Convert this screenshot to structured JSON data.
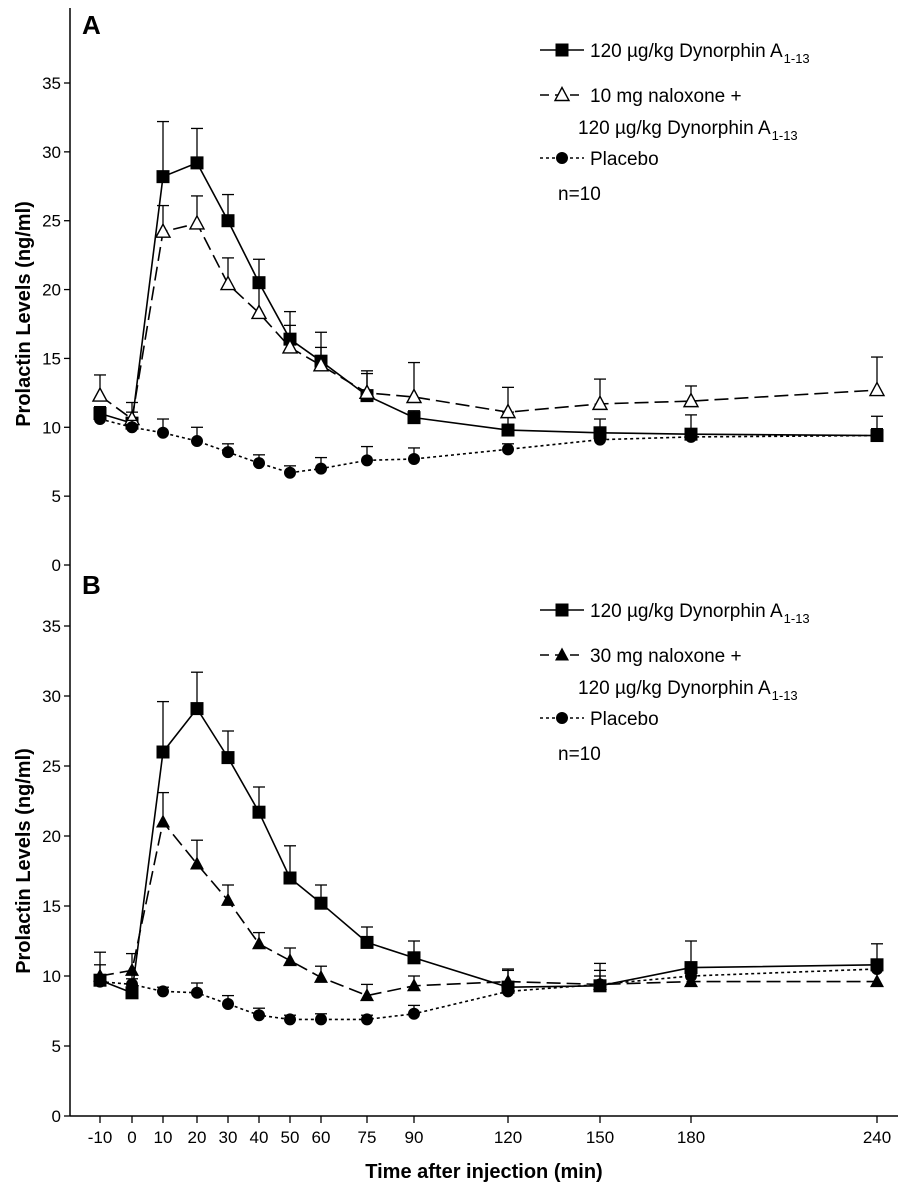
{
  "chart_data": [
    {
      "type": "line",
      "panel": "A",
      "ylabel": "Prolactin Levels (ng/ml)",
      "xlabel": "",
      "ylim": [
        0,
        35
      ],
      "yticks": [
        "0",
        "5",
        "10",
        "15",
        "20",
        "25",
        "30",
        "35"
      ],
      "x": [
        -10,
        0,
        10,
        20,
        30,
        40,
        50,
        60,
        75,
        90,
        120,
        150,
        180,
        240
      ],
      "x_tick_labels": [
        "-10",
        "0",
        "10",
        "20",
        "30",
        "40",
        "50",
        "60",
        "75",
        "90",
        "120",
        "150",
        "180",
        "240"
      ],
      "legend_position": "top-right",
      "n_label": "n=10",
      "series": [
        {
          "name": "120 µg/kg Dynorphin A1-13",
          "legend_line1": "120 µg/kg Dynorphin A",
          "legend_sub": "1-13",
          "marker": "filled-square",
          "line_style": "solid",
          "values": [
            11.0,
            10.3,
            28.2,
            29.2,
            25.0,
            20.5,
            16.4,
            14.8,
            12.3,
            10.7,
            9.8,
            9.6,
            9.5,
            9.4
          ],
          "error": [
            0.5,
            0.8,
            4.0,
            2.5,
            1.9,
            1.7,
            2.0,
            2.1,
            1.8,
            0.5,
            1.3,
            1.0,
            1.4,
            1.4
          ]
        },
        {
          "name": "10 mg naloxone + 120 µg/kg Dynorphin A1-13",
          "legend_line1": "10 mg naloxone +",
          "legend_line2": "120 µg/kg Dynorphin A",
          "legend_sub": "1-13",
          "marker": "open-triangle",
          "line_style": "dashed",
          "values": [
            12.3,
            10.6,
            24.2,
            24.8,
            20.4,
            18.3,
            15.8,
            14.5,
            12.5,
            12.2,
            11.1,
            11.7,
            11.9,
            12.7
          ],
          "error": [
            1.5,
            1.2,
            1.9,
            2.0,
            1.9,
            1.9,
            1.6,
            1.3,
            1.4,
            2.5,
            1.8,
            1.8,
            1.1,
            2.4
          ]
        },
        {
          "name": "Placebo",
          "legend_line1": "Placebo",
          "marker": "filled-circle",
          "line_style": "dotted",
          "values": [
            10.6,
            10.0,
            9.6,
            9.0,
            8.2,
            7.4,
            6.7,
            7.0,
            7.6,
            7.7,
            8.4,
            9.1,
            9.3,
            9.4
          ],
          "error": [
            0.5,
            0.5,
            1.0,
            1.0,
            0.6,
            0.6,
            0.5,
            0.8,
            1.0,
            0.8,
            0.4,
            0.4,
            0.4,
            0.5
          ]
        }
      ]
    },
    {
      "type": "line",
      "panel": "B",
      "ylabel": "Prolactin Levels (ng/ml)",
      "xlabel": "Time after injection (min)",
      "ylim": [
        0,
        35
      ],
      "yticks": [
        "0",
        "5",
        "10",
        "15",
        "20",
        "25",
        "30",
        "35"
      ],
      "x": [
        -10,
        0,
        10,
        20,
        30,
        40,
        50,
        60,
        75,
        90,
        120,
        150,
        180,
        240
      ],
      "x_tick_labels": [
        "-10",
        "0",
        "10",
        "20",
        "30",
        "40",
        "50",
        "60",
        "75",
        "90",
        "120",
        "150",
        "180",
        "240"
      ],
      "legend_position": "top-right",
      "n_label": "n=10",
      "series": [
        {
          "name": "120 µg/kg Dynorphin A1-13",
          "legend_line1": "120 µg/kg Dynorphin A",
          "legend_sub": "1-13",
          "marker": "filled-square",
          "line_style": "solid",
          "values": [
            9.7,
            8.8,
            26.0,
            29.1,
            25.6,
            21.7,
            17.0,
            15.2,
            12.4,
            11.3,
            9.2,
            9.3,
            10.6,
            10.8
          ],
          "error": [
            2.0,
            1.3,
            3.6,
            2.6,
            1.9,
            1.8,
            2.3,
            1.3,
            1.1,
            1.2,
            1.2,
            1.6,
            1.9,
            1.5
          ]
        },
        {
          "name": "30 mg naloxone + 120 µg/kg Dynorphin A1-13",
          "legend_line1": "30 mg naloxone +",
          "legend_line2": "120 µg/kg Dynorphin A",
          "legend_sub": "1-13",
          "marker": "filled-triangle",
          "line_style": "dashed",
          "values": [
            10.0,
            10.4,
            21.0,
            18.0,
            15.4,
            12.3,
            11.1,
            9.9,
            8.6,
            9.3,
            9.6,
            9.4,
            9.6,
            9.6
          ],
          "error": [
            0.8,
            1.2,
            2.1,
            1.7,
            1.1,
            0.8,
            0.9,
            0.8,
            0.8,
            0.7,
            0.9,
            1.0,
            1.0,
            1.0
          ]
        },
        {
          "name": "Placebo",
          "legend_line1": "Placebo",
          "marker": "filled-circle",
          "line_style": "dotted",
          "values": [
            9.6,
            9.4,
            8.9,
            8.8,
            8.0,
            7.2,
            6.9,
            6.9,
            6.9,
            7.3,
            8.9,
            9.4,
            10.0,
            10.5
          ],
          "error": [
            0.4,
            0.4,
            0.3,
            0.7,
            0.6,
            0.5,
            0.3,
            0.4,
            0.3,
            0.6,
            0.7,
            0.6,
            0.5,
            0.5
          ]
        }
      ]
    }
  ]
}
